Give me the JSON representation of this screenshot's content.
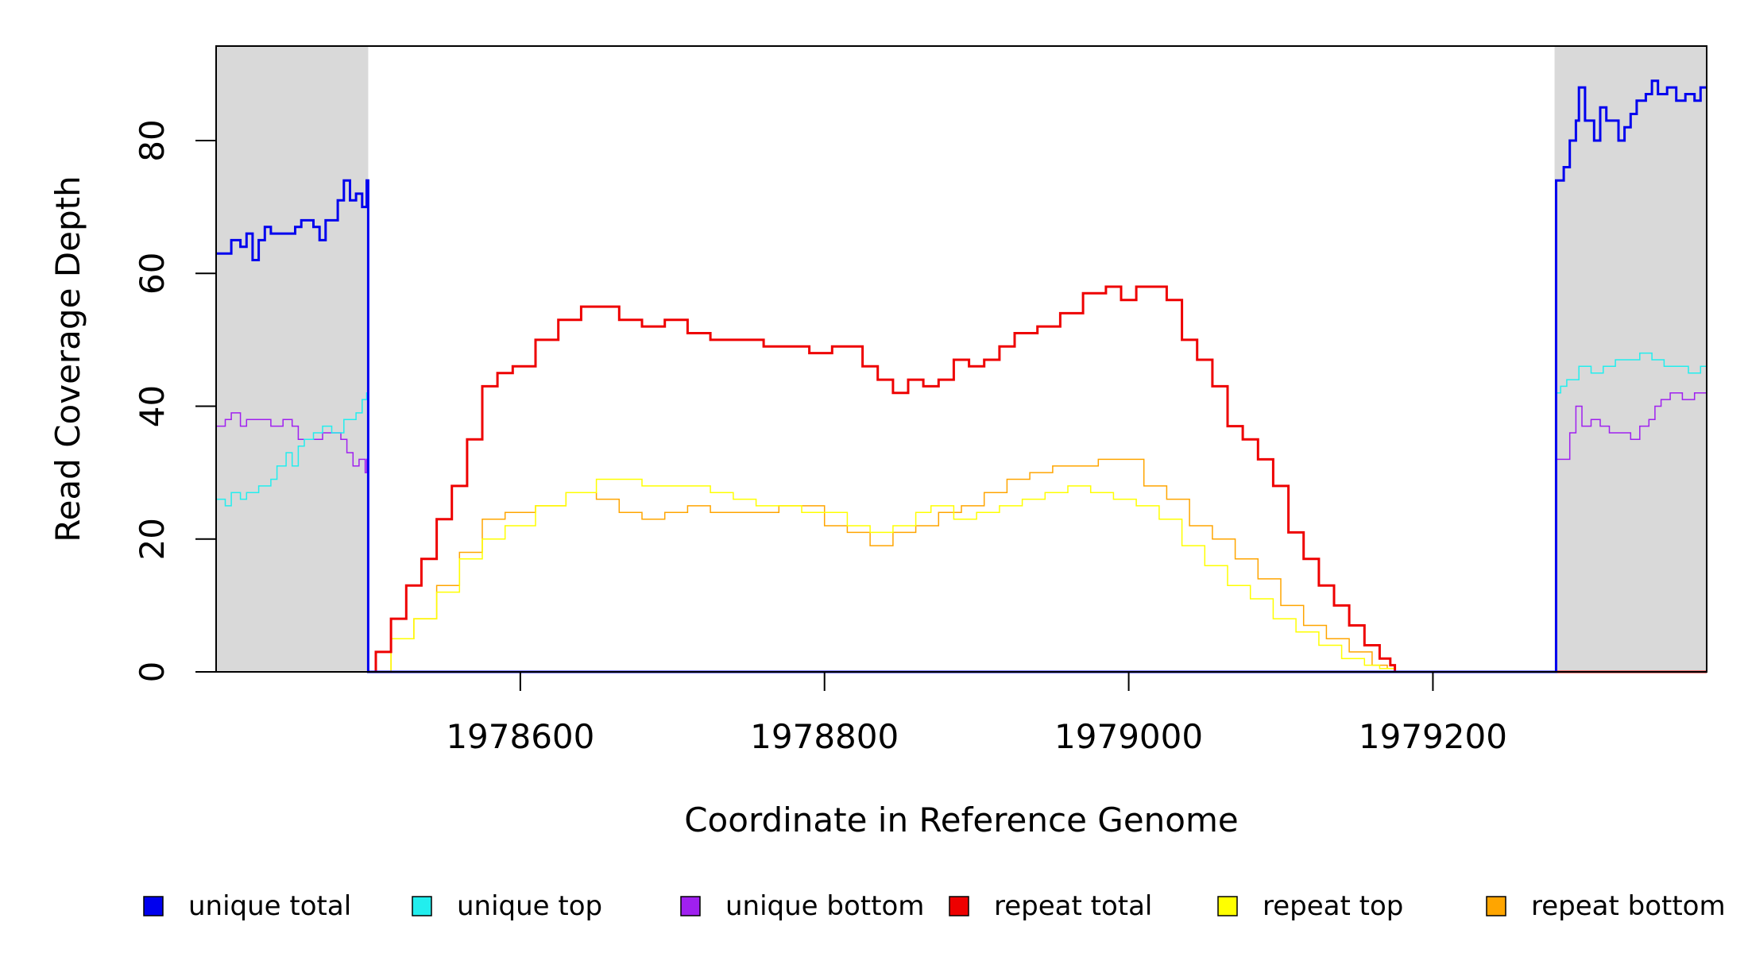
{
  "chart_data": {
    "type": "line",
    "title": "",
    "xlabel": "Coordinate in Reference Genome",
    "ylabel": "Read Coverage Depth",
    "xlim": [
      1978400,
      1979380
    ],
    "ylim": [
      0,
      92
    ],
    "x_ticks": [
      1978600,
      1978800,
      1979000,
      1979200
    ],
    "y_ticks": [
      0,
      20,
      40,
      60,
      80
    ],
    "grid": false,
    "shaded_regions": [
      [
        1978400,
        1978500
      ],
      [
        1979280,
        1979380
      ]
    ],
    "legend": {
      "placement": "bottom"
    },
    "series": [
      {
        "name": "unique total",
        "color": "#0000EE",
        "style": "step",
        "width": 3,
        "points": [
          [
            1978400,
            63
          ],
          [
            1978408,
            63
          ],
          [
            1978410,
            65
          ],
          [
            1978416,
            64
          ],
          [
            1978420,
            66
          ],
          [
            1978424,
            62
          ],
          [
            1978428,
            65
          ],
          [
            1978432,
            67
          ],
          [
            1978436,
            66
          ],
          [
            1978442,
            66
          ],
          [
            1978448,
            66
          ],
          [
            1978452,
            67
          ],
          [
            1978456,
            68
          ],
          [
            1978460,
            68
          ],
          [
            1978464,
            67
          ],
          [
            1978468,
            65
          ],
          [
            1978472,
            68
          ],
          [
            1978476,
            68
          ],
          [
            1978480,
            71
          ],
          [
            1978484,
            74
          ],
          [
            1978488,
            71
          ],
          [
            1978492,
            72
          ],
          [
            1978496,
            70
          ],
          [
            1978499,
            74
          ],
          [
            1978500,
            0
          ],
          [
            1979280,
            0
          ],
          [
            1979281,
            74
          ],
          [
            1979286,
            76
          ],
          [
            1979290,
            80
          ],
          [
            1979294,
            83
          ],
          [
            1979296,
            88
          ],
          [
            1979300,
            83
          ],
          [
            1979304,
            83
          ],
          [
            1979306,
            80
          ],
          [
            1979310,
            85
          ],
          [
            1979314,
            83
          ],
          [
            1979318,
            83
          ],
          [
            1979322,
            80
          ],
          [
            1979326,
            82
          ],
          [
            1979330,
            84
          ],
          [
            1979334,
            86
          ],
          [
            1979340,
            87
          ],
          [
            1979344,
            89
          ],
          [
            1979348,
            87
          ],
          [
            1979354,
            88
          ],
          [
            1979360,
            86
          ],
          [
            1979366,
            87
          ],
          [
            1979372,
            86
          ],
          [
            1979376,
            88
          ],
          [
            1979380,
            88
          ]
        ]
      },
      {
        "name": "unique top",
        "color": "#22EEEE",
        "style": "step",
        "width": 1.5,
        "points": [
          [
            1978400,
            26
          ],
          [
            1978406,
            25
          ],
          [
            1978410,
            27
          ],
          [
            1978416,
            26
          ],
          [
            1978420,
            27
          ],
          [
            1978428,
            28
          ],
          [
            1978436,
            29
          ],
          [
            1978440,
            31
          ],
          [
            1978446,
            33
          ],
          [
            1978450,
            31
          ],
          [
            1978454,
            34
          ],
          [
            1978458,
            35
          ],
          [
            1978464,
            36
          ],
          [
            1978470,
            37
          ],
          [
            1978476,
            36
          ],
          [
            1978480,
            36
          ],
          [
            1978484,
            38
          ],
          [
            1978488,
            38
          ],
          [
            1978492,
            39
          ],
          [
            1978496,
            41
          ],
          [
            1978499,
            42
          ],
          [
            1978500,
            0
          ],
          [
            1979280,
            0
          ],
          [
            1979281,
            42
          ],
          [
            1979284,
            43
          ],
          [
            1979288,
            44
          ],
          [
            1979296,
            46
          ],
          [
            1979304,
            45
          ],
          [
            1979312,
            46
          ],
          [
            1979320,
            47
          ],
          [
            1979328,
            47
          ],
          [
            1979336,
            48
          ],
          [
            1979344,
            47
          ],
          [
            1979352,
            46
          ],
          [
            1979360,
            46
          ],
          [
            1979368,
            45
          ],
          [
            1979376,
            46
          ],
          [
            1979380,
            46
          ]
        ]
      },
      {
        "name": "unique bottom",
        "color": "#A020F0",
        "style": "step",
        "width": 1.5,
        "points": [
          [
            1978400,
            37
          ],
          [
            1978406,
            38
          ],
          [
            1978410,
            39
          ],
          [
            1978416,
            37
          ],
          [
            1978420,
            38
          ],
          [
            1978428,
            38
          ],
          [
            1978436,
            37
          ],
          [
            1978444,
            38
          ],
          [
            1978450,
            37
          ],
          [
            1978454,
            35
          ],
          [
            1978458,
            35
          ],
          [
            1978464,
            35
          ],
          [
            1978470,
            36
          ],
          [
            1978476,
            36
          ],
          [
            1978482,
            35
          ],
          [
            1978486,
            33
          ],
          [
            1978490,
            31
          ],
          [
            1978494,
            32
          ],
          [
            1978498,
            30
          ],
          [
            1978499,
            32
          ],
          [
            1978500,
            0
          ],
          [
            1979280,
            0
          ],
          [
            1979281,
            32
          ],
          [
            1979286,
            32
          ],
          [
            1979290,
            36
          ],
          [
            1979294,
            40
          ],
          [
            1979298,
            37
          ],
          [
            1979304,
            38
          ],
          [
            1979310,
            37
          ],
          [
            1979316,
            36
          ],
          [
            1979324,
            36
          ],
          [
            1979330,
            35
          ],
          [
            1979336,
            37
          ],
          [
            1979342,
            38
          ],
          [
            1979346,
            40
          ],
          [
            1979350,
            41
          ],
          [
            1979356,
            42
          ],
          [
            1979364,
            41
          ],
          [
            1979372,
            42
          ],
          [
            1979380,
            42
          ]
        ]
      },
      {
        "name": "repeat total",
        "color": "#EE0000",
        "style": "step",
        "width": 3,
        "points": [
          [
            1978500,
            0
          ],
          [
            1978505,
            3
          ],
          [
            1978515,
            8
          ],
          [
            1978525,
            13
          ],
          [
            1978535,
            17
          ],
          [
            1978545,
            23
          ],
          [
            1978555,
            28
          ],
          [
            1978565,
            35
          ],
          [
            1978575,
            43
          ],
          [
            1978585,
            45
          ],
          [
            1978595,
            46
          ],
          [
            1978610,
            50
          ],
          [
            1978625,
            53
          ],
          [
            1978640,
            55
          ],
          [
            1978655,
            55
          ],
          [
            1978665,
            53
          ],
          [
            1978680,
            52
          ],
          [
            1978695,
            53
          ],
          [
            1978710,
            51
          ],
          [
            1978725,
            50
          ],
          [
            1978745,
            50
          ],
          [
            1978760,
            49
          ],
          [
            1978775,
            49
          ],
          [
            1978790,
            48
          ],
          [
            1978805,
            49
          ],
          [
            1978815,
            49
          ],
          [
            1978825,
            46
          ],
          [
            1978835,
            44
          ],
          [
            1978845,
            42
          ],
          [
            1978855,
            44
          ],
          [
            1978865,
            43
          ],
          [
            1978875,
            44
          ],
          [
            1978885,
            47
          ],
          [
            1978895,
            46
          ],
          [
            1978905,
            47
          ],
          [
            1978915,
            49
          ],
          [
            1978925,
            51
          ],
          [
            1978940,
            52
          ],
          [
            1978955,
            54
          ],
          [
            1978970,
            57
          ],
          [
            1978985,
            58
          ],
          [
            1978995,
            56
          ],
          [
            1979005,
            58
          ],
          [
            1979015,
            58
          ],
          [
            1979025,
            56
          ],
          [
            1979035,
            50
          ],
          [
            1979045,
            47
          ],
          [
            1979055,
            43
          ],
          [
            1979065,
            37
          ],
          [
            1979075,
            35
          ],
          [
            1979085,
            32
          ],
          [
            1979095,
            28
          ],
          [
            1979105,
            21
          ],
          [
            1979115,
            17
          ],
          [
            1979125,
            13
          ],
          [
            1979135,
            10
          ],
          [
            1979145,
            7
          ],
          [
            1979155,
            4
          ],
          [
            1979165,
            2
          ],
          [
            1979172,
            1
          ],
          [
            1979175,
            0
          ],
          [
            1979380,
            0
          ]
        ]
      },
      {
        "name": "repeat top",
        "color": "#FFFF00",
        "style": "step",
        "width": 1.5,
        "points": [
          [
            1978500,
            0
          ],
          [
            1978515,
            5
          ],
          [
            1978530,
            8
          ],
          [
            1978545,
            12
          ],
          [
            1978560,
            17
          ],
          [
            1978575,
            20
          ],
          [
            1978590,
            22
          ],
          [
            1978610,
            25
          ],
          [
            1978630,
            27
          ],
          [
            1978650,
            29
          ],
          [
            1978665,
            29
          ],
          [
            1978680,
            28
          ],
          [
            1978695,
            28
          ],
          [
            1978710,
            28
          ],
          [
            1978725,
            27
          ],
          [
            1978740,
            26
          ],
          [
            1978755,
            25
          ],
          [
            1978770,
            25
          ],
          [
            1978785,
            24
          ],
          [
            1978800,
            24
          ],
          [
            1978815,
            22
          ],
          [
            1978830,
            21
          ],
          [
            1978845,
            22
          ],
          [
            1978860,
            24
          ],
          [
            1978870,
            25
          ],
          [
            1978885,
            23
          ],
          [
            1978900,
            24
          ],
          [
            1978915,
            25
          ],
          [
            1978930,
            26
          ],
          [
            1978945,
            27
          ],
          [
            1978960,
            28
          ],
          [
            1978975,
            27
          ],
          [
            1978990,
            26
          ],
          [
            1979005,
            25
          ],
          [
            1979020,
            23
          ],
          [
            1979035,
            19
          ],
          [
            1979050,
            16
          ],
          [
            1979065,
            13
          ],
          [
            1979080,
            11
          ],
          [
            1979095,
            8
          ],
          [
            1979110,
            6
          ],
          [
            1979125,
            4
          ],
          [
            1979140,
            2
          ],
          [
            1979155,
            1
          ],
          [
            1979165,
            0.5
          ],
          [
            1979175,
            0
          ],
          [
            1979380,
            0
          ]
        ]
      },
      {
        "name": "repeat bottom",
        "color": "#FFA500",
        "style": "step",
        "width": 1.5,
        "points": [
          [
            1978500,
            0
          ],
          [
            1978515,
            5
          ],
          [
            1978530,
            8
          ],
          [
            1978545,
            13
          ],
          [
            1978560,
            18
          ],
          [
            1978575,
            23
          ],
          [
            1978590,
            24
          ],
          [
            1978610,
            25
          ],
          [
            1978630,
            27
          ],
          [
            1978650,
            26
          ],
          [
            1978665,
            24
          ],
          [
            1978680,
            23
          ],
          [
            1978695,
            24
          ],
          [
            1978710,
            25
          ],
          [
            1978725,
            24
          ],
          [
            1978740,
            24
          ],
          [
            1978755,
            24
          ],
          [
            1978770,
            25
          ],
          [
            1978785,
            25
          ],
          [
            1978800,
            22
          ],
          [
            1978815,
            21
          ],
          [
            1978830,
            19
          ],
          [
            1978845,
            21
          ],
          [
            1978860,
            22
          ],
          [
            1978875,
            24
          ],
          [
            1978890,
            25
          ],
          [
            1978905,
            27
          ],
          [
            1978920,
            29
          ],
          [
            1978935,
            30
          ],
          [
            1978950,
            31
          ],
          [
            1978965,
            31
          ],
          [
            1978980,
            32
          ],
          [
            1978995,
            32
          ],
          [
            1979010,
            28
          ],
          [
            1979025,
            26
          ],
          [
            1979040,
            22
          ],
          [
            1979055,
            20
          ],
          [
            1979070,
            17
          ],
          [
            1979085,
            14
          ],
          [
            1979100,
            10
          ],
          [
            1979115,
            7
          ],
          [
            1979130,
            5
          ],
          [
            1979145,
            3
          ],
          [
            1979160,
            1
          ],
          [
            1979170,
            0.5
          ],
          [
            1979175,
            0
          ],
          [
            1979380,
            0
          ]
        ]
      }
    ]
  }
}
